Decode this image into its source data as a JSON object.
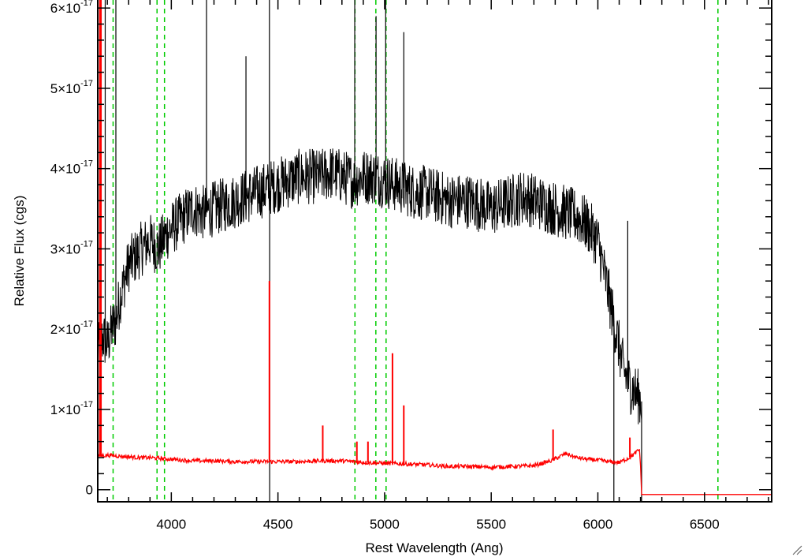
{
  "chart_data": {
    "type": "line",
    "title": "",
    "xlabel": "Rest Wavelength (Ang)",
    "ylabel": "Relative Flux (cgs)",
    "xlim": [
      3655,
      6815
    ],
    "ylim": [
      -1.5e-18,
      6.1e-17
    ],
    "x_ticks": [
      4000,
      4500,
      5000,
      5500,
      6000,
      6500
    ],
    "x_tick_labels": [
      "4000",
      "4500",
      "5000",
      "5500",
      "6000",
      "6500"
    ],
    "y_ticks": [
      0,
      1e-17,
      2e-17,
      3e-17,
      4e-17,
      5e-17,
      6e-17
    ],
    "y_tick_labels": [
      {
        "mantissa": "0",
        "exp": ""
      },
      {
        "mantissa": "1×10",
        "exp": "-17"
      },
      {
        "mantissa": "2×10",
        "exp": "-17"
      },
      {
        "mantissa": "3×10",
        "exp": "-17"
      },
      {
        "mantissa": "4×10",
        "exp": "-17"
      },
      {
        "mantissa": "5×10",
        "exp": "-17"
      },
      {
        "mantissa": "6×10",
        "exp": "-17"
      }
    ],
    "grid": false,
    "legend": "none",
    "series": [
      {
        "color": "#000000",
        "x": [
          3655,
          3680,
          3700,
          3720,
          3740,
          3760,
          3780,
          3800,
          3830,
          3860,
          3900,
          3940,
          3980,
          4020,
          4060,
          4100,
          4150,
          4200,
          4250,
          4300,
          4350,
          4400,
          4450,
          4500,
          4550,
          4600,
          4650,
          4700,
          4750,
          4800,
          4850,
          4900,
          4950,
          5000,
          5050,
          5100,
          5150,
          5200,
          5250,
          5300,
          5350,
          5400,
          5450,
          5500,
          5550,
          5600,
          5650,
          5700,
          5750,
          5800,
          5850,
          5900,
          5950,
          6000,
          6030,
          6060,
          6090,
          6120,
          6150,
          6180,
          6205
        ],
        "y": [
          1.7e-17,
          1.9e-17,
          1.8e-17,
          2e-17,
          2.1e-17,
          2.4e-17,
          2.6e-17,
          2.8e-17,
          2.9e-17,
          3e-17,
          3.1e-17,
          3e-17,
          3.2e-17,
          3.3e-17,
          3.4e-17,
          3.5e-17,
          3.45e-17,
          3.5e-17,
          3.55e-17,
          3.6e-17,
          3.65e-17,
          3.7e-17,
          3.75e-17,
          3.8e-17,
          3.85e-17,
          3.9e-17,
          3.9e-17,
          3.9e-17,
          3.95e-17,
          3.9e-17,
          3.85e-17,
          3.9e-17,
          3.9e-17,
          3.85e-17,
          3.8e-17,
          3.75e-17,
          3.7e-17,
          3.7e-17,
          3.65e-17,
          3.6e-17,
          3.6e-17,
          3.6e-17,
          3.55e-17,
          3.5e-17,
          3.55e-17,
          3.6e-17,
          3.65e-17,
          3.6e-17,
          3.55e-17,
          3.5e-17,
          3.45e-17,
          3.4e-17,
          3.3e-17,
          3.1e-17,
          2.7e-17,
          2.3e-17,
          1.9e-17,
          1.5e-17,
          1.3e-17,
          1.2e-17,
          1.1e-17
        ],
        "spikes": [
          {
            "x": 3665,
            "y": 6.1e-17
          },
          {
            "x": 3690,
            "y": 6.1e-17
          },
          {
            "x": 3740,
            "y": 6.1e-17
          },
          {
            "x": 4165,
            "y": 6.1e-17
          },
          {
            "x": 4350,
            "y": 5.4e-17
          },
          {
            "x": 4460,
            "y": 6.1e-17
          },
          {
            "x": 4461,
            "y": -1.5e-18
          },
          {
            "x": 4860,
            "y": 6.1e-17
          },
          {
            "x": 4960,
            "y": 5.9e-17
          },
          {
            "x": 5005,
            "y": 6.1e-17
          },
          {
            "x": 5090,
            "y": 5.7e-17
          },
          {
            "x": 6075,
            "y": -1.5e-18
          },
          {
            "x": 6140,
            "y": 3.35e-17
          },
          {
            "x": 6205,
            "y": -1.5e-18
          }
        ]
      },
      {
        "color": "#ff0000",
        "x": [
          3655,
          3700,
          3750,
          3800,
          3850,
          3900,
          3950,
          4000,
          4100,
          4200,
          4300,
          4400,
          4500,
          4600,
          4700,
          4800,
          4900,
          5000,
          5100,
          5200,
          5300,
          5400,
          5500,
          5600,
          5700,
          5780,
          5850,
          5900,
          5950,
          6000,
          6050,
          6100,
          6150,
          6195,
          6200,
          6205,
          6815
        ],
        "y": [
          4.2e-18,
          4.3e-18,
          4.2e-18,
          4.1e-18,
          4e-18,
          4e-18,
          3.9e-18,
          3.8e-18,
          3.6e-18,
          3.6e-18,
          3.5e-18,
          3.5e-18,
          3.5e-18,
          3.5e-18,
          3.6e-18,
          3.6e-18,
          3.4e-18,
          3.3e-18,
          3.2e-18,
          3.1e-18,
          2.9e-18,
          2.9e-18,
          2.8e-18,
          2.9e-18,
          3e-18,
          3.6e-18,
          4.5e-18,
          4e-18,
          3.8e-18,
          3.7e-18,
          3.5e-18,
          3.4e-18,
          4e-18,
          5e-18,
          3e-18,
          -6e-19,
          -6e-19
        ],
        "spikes": [
          {
            "x": 3665,
            "y": 6.1e-17
          },
          {
            "x": 3670,
            "y": 6.1e-17
          },
          {
            "x": 4460,
            "y": 2.6e-17
          },
          {
            "x": 4710,
            "y": 8e-18
          },
          {
            "x": 4870,
            "y": 6e-18
          },
          {
            "x": 4922,
            "y": 6e-18
          },
          {
            "x": 5037,
            "y": 1.7e-17
          },
          {
            "x": 5090,
            "y": 1.05e-17
          },
          {
            "x": 5790,
            "y": 7.5e-18
          },
          {
            "x": 6150,
            "y": 6.5e-18
          }
        ]
      }
    ],
    "vlines": {
      "color": "#00cc00",
      "style": "dashed",
      "x": [
        3727,
        3933,
        3968,
        4861,
        4959,
        5007,
        6563
      ]
    }
  }
}
